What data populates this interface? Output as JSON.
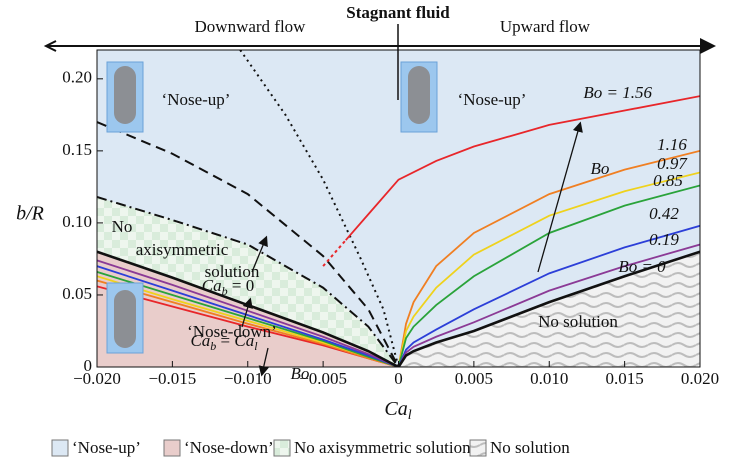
{
  "chart_data": {
    "type": "line",
    "header": {
      "left": "Downward flow",
      "center": "Stagnant fluid",
      "right": "Upward flow"
    },
    "xlabel": {
      "text": "Ca",
      "sub": "l"
    },
    "ylabel": "b/R",
    "xlim": [
      -0.02,
      0.02
    ],
    "ylim": [
      0,
      0.22
    ],
    "xticks": [
      {
        "value": -0.02,
        "label": "−0.020"
      },
      {
        "value": -0.015,
        "label": "−0.015"
      },
      {
        "value": -0.01,
        "label": "−0.010"
      },
      {
        "value": -0.005,
        "label": "−0.005"
      },
      0,
      {
        "value": 0.005,
        "label": "0.005"
      },
      {
        "value": 0.01,
        "label": "0.010"
      },
      {
        "value": 0.015,
        "label": "0.015"
      },
      {
        "value": 0.02,
        "label": "0.020"
      }
    ],
    "yticks": [
      0,
      0.05,
      {
        "value": 0.1,
        "label": "0.10"
      },
      0.15,
      {
        "value": 0.2,
        "label": "0.20"
      }
    ],
    "lower_x": [
      -0.02,
      -0.015,
      -0.01,
      -0.005,
      -0.002,
      0
    ],
    "series": [
      {
        "name": "Bo = 1.56",
        "color": "#e8262a",
        "x": [
          -0.0035,
          -0.002,
          0,
          0.0025,
          0.005,
          0.01,
          0.015,
          0.02
        ],
        "values": [
          0.088,
          0.106,
          0.13,
          0.143,
          0.153,
          0.168,
          0.178,
          0.188
        ],
        "dotted_x": [
          -0.005,
          -0.0035
        ],
        "dotted_values": [
          0.07,
          0.088
        ],
        "lower_values": [
          0.056,
          0.042,
          0.028,
          0.015,
          0.006,
          0
        ]
      },
      {
        "name": "1.16",
        "color": "#f07f22",
        "x": [
          0,
          0.0005,
          0.001,
          0.0025,
          0.005,
          0.01,
          0.015,
          0.02
        ],
        "values": [
          0,
          0.03,
          0.045,
          0.07,
          0.093,
          0.12,
          0.137,
          0.15
        ],
        "lower_values": [
          0.06,
          0.045,
          0.03,
          0.016,
          0.006,
          0
        ]
      },
      {
        "name": "0.97",
        "color": "#efd21c",
        "x": [
          0,
          0.0005,
          0.001,
          0.0025,
          0.005,
          0.01,
          0.015,
          0.02
        ],
        "values": [
          0,
          0.025,
          0.035,
          0.055,
          0.078,
          0.105,
          0.122,
          0.135
        ],
        "lower_values": [
          0.063,
          0.047,
          0.032,
          0.017,
          0.007,
          0
        ]
      },
      {
        "name": "0.85",
        "color": "#2aa33a",
        "x": [
          0,
          0.0005,
          0.001,
          0.0025,
          0.005,
          0.01,
          0.015,
          0.02
        ],
        "values": [
          0,
          0.02,
          0.028,
          0.043,
          0.063,
          0.093,
          0.112,
          0.126
        ],
        "lower_values": [
          0.066,
          0.05,
          0.034,
          0.018,
          0.007,
          0
        ]
      },
      {
        "name": "0.42",
        "color": "#2c3fd8",
        "x": [
          0,
          0.0005,
          0.001,
          0.0025,
          0.005,
          0.01,
          0.015,
          0.02
        ],
        "values": [
          0,
          0.012,
          0.017,
          0.026,
          0.04,
          0.065,
          0.083,
          0.098
        ],
        "lower_values": [
          0.07,
          0.053,
          0.036,
          0.019,
          0.008,
          0
        ]
      },
      {
        "name": "0.19",
        "color": "#8b3a96",
        "x": [
          0,
          0.0005,
          0.001,
          0.0025,
          0.005,
          0.01,
          0.015,
          0.02
        ],
        "values": [
          0,
          0.01,
          0.014,
          0.021,
          0.031,
          0.053,
          0.07,
          0.085
        ],
        "lower_values": [
          0.074,
          0.057,
          0.039,
          0.021,
          0.009,
          0
        ]
      },
      {
        "name": "Bo = 0",
        "color": "#111111",
        "x": [
          0,
          0.0005,
          0.001,
          0.0025,
          0.005,
          0.01,
          0.015,
          0.02
        ],
        "values": [
          0,
          0.008,
          0.011,
          0.017,
          0.025,
          0.045,
          0.063,
          0.08
        ],
        "lower_values": [
          0.08,
          0.062,
          0.043,
          0.024,
          0.011,
          0
        ]
      }
    ],
    "boundaries": [
      {
        "style": "dotted",
        "x": [
          -0.0105,
          -0.0075,
          -0.005,
          -0.0025,
          -0.001,
          0
        ],
        "values": [
          0.22,
          0.175,
          0.13,
          0.075,
          0.04,
          0
        ],
        "label": {
          "text": "Ca",
          "sub": "b",
          "after": " = 0"
        }
      },
      {
        "style": "dashed",
        "x": [
          -0.02,
          -0.015,
          -0.01,
          -0.005,
          -0.002,
          0
        ],
        "values": [
          0.17,
          0.148,
          0.12,
          0.077,
          0.04,
          0
        ],
        "label": {
          "text": "Ca",
          "sub": "b",
          "after": " = ",
          "text2": "Ca",
          "sub2": "l"
        }
      },
      {
        "style": "dashdot",
        "x": [
          -0.02,
          -0.015,
          -0.01,
          -0.005,
          -0.002,
          0
        ],
        "values": [
          0.118,
          0.102,
          0.085,
          0.055,
          0.028,
          0
        ]
      }
    ],
    "annotations": [
      "‘Nose-up’",
      "‘Nose-up’",
      "‘Nose-down’",
      "No",
      "axisymmetric",
      "solution",
      "No solution",
      "Bo",
      "Bo"
    ],
    "legend": [
      {
        "label": "‘Nose-up’",
        "fill": "#dce8f4"
      },
      {
        "label": "‘Nose-down’",
        "fill": "#e9cdcb"
      },
      {
        "label": "No axisymmetric solution",
        "fill": "checker"
      },
      {
        "label": "No solution",
        "fill": "wavy"
      }
    ]
  }
}
